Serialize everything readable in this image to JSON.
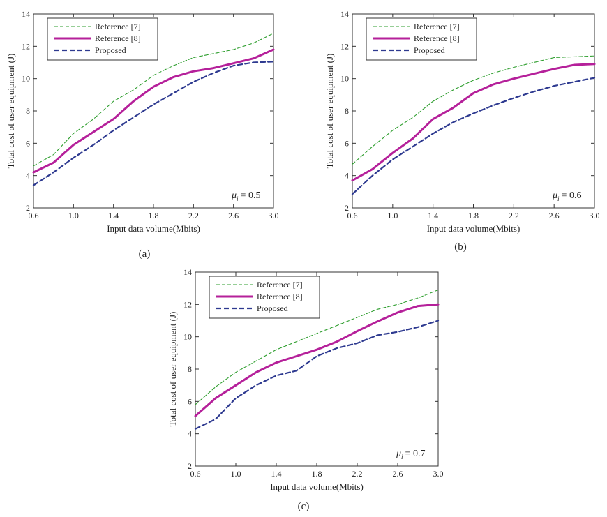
{
  "figure": {
    "legend_labels": [
      "Reference [7]",
      "Reference [8]",
      "Proposed"
    ],
    "series_colors": [
      "#2e9e2e",
      "#b5209a",
      "#2e3a90"
    ]
  },
  "chart_data": [
    {
      "type": "line",
      "caption": "(a)",
      "annotation_symbol": "μ",
      "annotation_subscript": "i",
      "annotation_value": "= 0.5",
      "xlabel": "Input data volume(Mbits)",
      "ylabel": "Total cost of user equipment (J)",
      "xlim": [
        0.6,
        3.0
      ],
      "ylim": [
        2,
        14
      ],
      "xticks": [
        0.6,
        1.0,
        1.4,
        1.8,
        2.2,
        2.6,
        3.0
      ],
      "xtick_labels": [
        "0.6",
        "1.0",
        "1.4",
        "1.8",
        "2.2",
        "2.6",
        "3.0"
      ],
      "yticks": [
        2,
        4,
        6,
        8,
        10,
        12,
        14
      ],
      "ytick_labels": [
        "2",
        "4",
        "6",
        "8",
        "10",
        "12",
        "14"
      ],
      "x": [
        0.6,
        0.8,
        1.0,
        1.2,
        1.4,
        1.6,
        1.8,
        2.0,
        2.2,
        2.4,
        2.6,
        2.8,
        3.0
      ],
      "series": [
        {
          "name": "Reference [7]",
          "values": [
            4.6,
            5.3,
            6.6,
            7.5,
            8.6,
            9.3,
            10.2,
            10.8,
            11.3,
            11.55,
            11.8,
            12.2,
            12.8
          ]
        },
        {
          "name": "Reference [8]",
          "values": [
            4.2,
            4.8,
            5.9,
            6.7,
            7.5,
            8.6,
            9.5,
            10.1,
            10.45,
            10.65,
            10.95,
            11.25,
            11.8
          ]
        },
        {
          "name": "Proposed",
          "values": [
            3.4,
            4.2,
            5.1,
            5.9,
            6.8,
            7.6,
            8.4,
            9.1,
            9.8,
            10.35,
            10.8,
            11.0,
            11.05
          ]
        }
      ]
    },
    {
      "type": "line",
      "caption": "(b)",
      "annotation_symbol": "μ",
      "annotation_subscript": "i",
      "annotation_value": "= 0.6",
      "xlabel": "Input data volume(Mbits)",
      "ylabel": "Total cost of user equipment (J)",
      "xlim": [
        0.6,
        3.0
      ],
      "ylim": [
        2,
        14
      ],
      "xticks": [
        0.6,
        1.0,
        1.4,
        1.8,
        2.2,
        2.6,
        3.0
      ],
      "xtick_labels": [
        "0.6",
        "1.0",
        "1.4",
        "1.8",
        "2.2",
        "2.6",
        "3.0"
      ],
      "yticks": [
        2,
        4,
        6,
        8,
        10,
        12,
        14
      ],
      "ytick_labels": [
        "2",
        "4",
        "6",
        "8",
        "10",
        "12",
        "14"
      ],
      "x": [
        0.6,
        0.8,
        1.0,
        1.2,
        1.4,
        1.6,
        1.8,
        2.0,
        2.2,
        2.4,
        2.6,
        2.8,
        3.0
      ],
      "series": [
        {
          "name": "Reference [7]",
          "values": [
            4.7,
            5.8,
            6.8,
            7.6,
            8.6,
            9.3,
            9.9,
            10.35,
            10.7,
            11.0,
            11.3,
            11.35,
            11.4
          ]
        },
        {
          "name": "Reference [8]",
          "values": [
            3.7,
            4.4,
            5.4,
            6.3,
            7.5,
            8.2,
            9.1,
            9.65,
            10.0,
            10.3,
            10.6,
            10.85,
            10.9
          ]
        },
        {
          "name": "Proposed",
          "values": [
            2.85,
            4.0,
            5.0,
            5.8,
            6.6,
            7.3,
            7.85,
            8.35,
            8.8,
            9.2,
            9.55,
            9.8,
            10.05
          ]
        }
      ]
    },
    {
      "type": "line",
      "caption": "(c)",
      "annotation_symbol": "μ",
      "annotation_subscript": "i",
      "annotation_value": "= 0.7",
      "xlabel": "Input data volume(Mbits)",
      "ylabel": "Total cost of user equipment (J)",
      "xlim": [
        0.6,
        3.0
      ],
      "ylim": [
        2,
        14
      ],
      "xticks": [
        0.6,
        1.0,
        1.4,
        1.8,
        2.2,
        2.6,
        3.0
      ],
      "xtick_labels": [
        "0.6",
        "1.0",
        "1.4",
        "1.8",
        "2.2",
        "2.6",
        "3.0"
      ],
      "yticks": [
        2,
        4,
        6,
        8,
        10,
        12,
        14
      ],
      "ytick_labels": [
        "2",
        "4",
        "6",
        "8",
        "10",
        "12",
        "14"
      ],
      "x": [
        0.6,
        0.8,
        1.0,
        1.2,
        1.4,
        1.6,
        1.8,
        2.0,
        2.2,
        2.4,
        2.6,
        2.8,
        3.0
      ],
      "series": [
        {
          "name": "Reference [7]",
          "values": [
            5.8,
            6.9,
            7.8,
            8.5,
            9.2,
            9.7,
            10.2,
            10.7,
            11.2,
            11.7,
            12.0,
            12.4,
            12.9
          ]
        },
        {
          "name": "Reference [8]",
          "values": [
            5.1,
            6.2,
            7.0,
            7.8,
            8.4,
            8.8,
            9.2,
            9.7,
            10.35,
            10.95,
            11.5,
            11.9,
            12.0
          ]
        },
        {
          "name": "Proposed",
          "values": [
            4.3,
            4.9,
            6.2,
            7.0,
            7.6,
            7.9,
            8.8,
            9.3,
            9.6,
            10.1,
            10.3,
            10.6,
            11.0
          ]
        }
      ]
    }
  ]
}
